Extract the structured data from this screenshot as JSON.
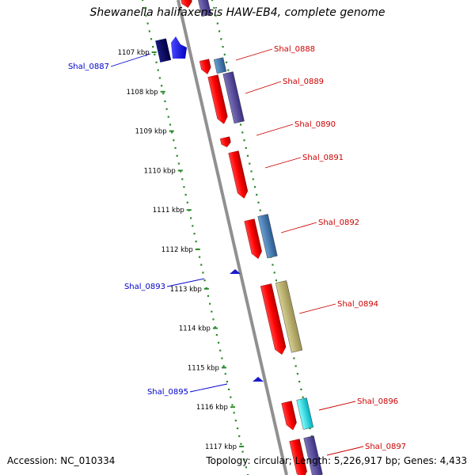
{
  "title": "Shewanella halifaxensis HAW-EB4, complete genome",
  "footer": {
    "accession": "Accession: NC_010334",
    "summary": "Topology: circular; Length: 5,226,917 bp; Genes: 4,433"
  },
  "colors": {
    "backbone": "#909090",
    "tick_dots": "#2a8a2a",
    "forward_label": "#cc0000",
    "reverse_label": "#0000cc",
    "reverse_gene": "#1a1acc"
  },
  "ticks": [
    "1107 kbp",
    "1108 kbp",
    "1109 kbp",
    "1110 kbp",
    "1111 kbp",
    "1112 kbp",
    "1113 kbp",
    "1114 kbp",
    "1115 kbp",
    "1116 kbp",
    "1117 kbp"
  ],
  "gene_labels": [
    {
      "name": "Shal_0887",
      "strand": "reverse"
    },
    {
      "name": "Shal_0888",
      "strand": "forward"
    },
    {
      "name": "Shal_0889",
      "strand": "forward"
    },
    {
      "name": "Shal_0890",
      "strand": "forward"
    },
    {
      "name": "Shal_0891",
      "strand": "forward"
    },
    {
      "name": "Shal_0892",
      "strand": "forward"
    },
    {
      "name": "Shal_0893",
      "strand": "reverse"
    },
    {
      "name": "Shal_0894",
      "strand": "forward"
    },
    {
      "name": "Shal_0895",
      "strand": "reverse"
    },
    {
      "name": "Shal_0896",
      "strand": "forward"
    },
    {
      "name": "Shal_0897",
      "strand": "forward"
    }
  ]
}
